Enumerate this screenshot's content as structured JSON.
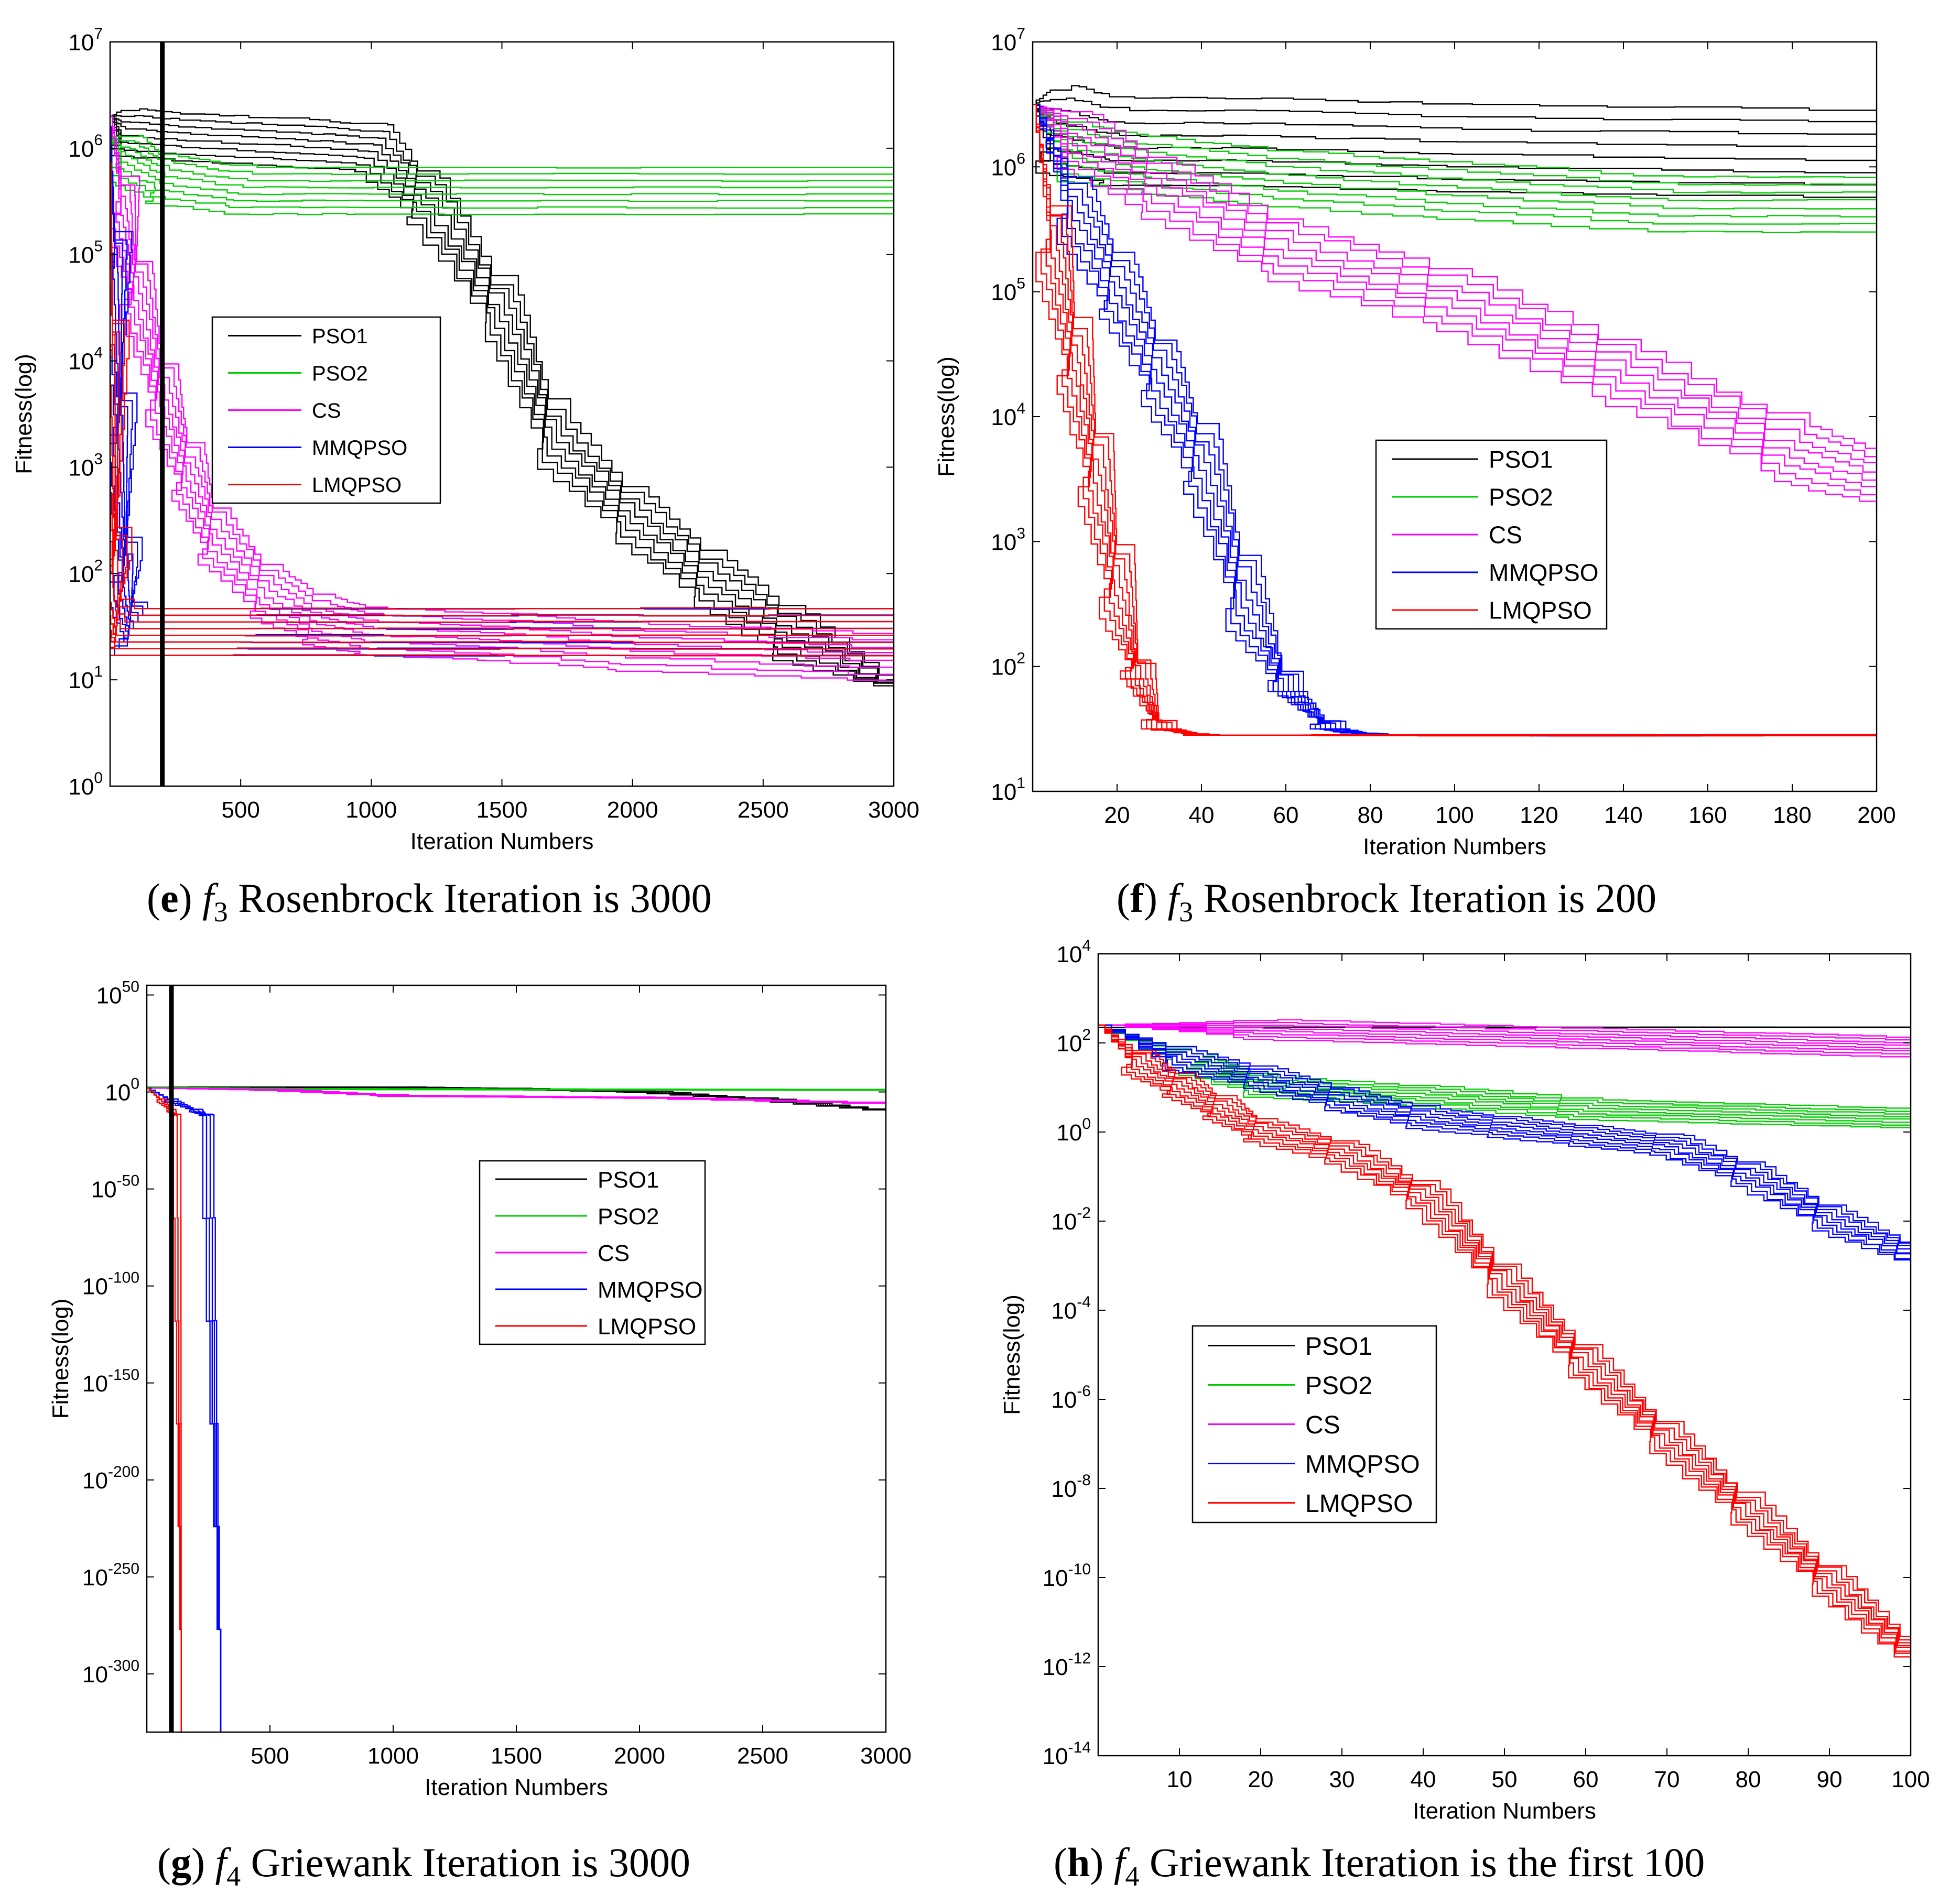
{
  "series_colors": {
    "PSO1": "#000000",
    "PSO2": "#00cc00",
    "CS": "#ff00ff",
    "MMQPSO": "#0000ff",
    "LMQPSO": "#ff0000"
  },
  "chart_data": [
    {
      "id": "e",
      "type": "line",
      "scale_y": "log",
      "caption": {
        "letter": "(e)",
        "fn": "f",
        "sub": "3",
        "text": "Rosenbrock Iteration is 3000"
      },
      "xlabel": "Iteration Numbers",
      "ylabel": "Fitness(log)",
      "xlim": [
        0,
        3000
      ],
      "xticks": [
        500,
        1000,
        1500,
        2000,
        2500,
        3000
      ],
      "ylim_exp": [
        0,
        7
      ],
      "yticks_exp": [
        0,
        1,
        2,
        3,
        4,
        5,
        6,
        7
      ],
      "legend": [
        "PSO1",
        "PSO2",
        "CS",
        "MMQPSO",
        "LMQPSO"
      ],
      "marker_x": 200,
      "series": [
        {
          "name": "PSO1",
          "runs": 8,
          "x": [
            0,
            50,
            300,
            700,
            1000,
            1200,
            1500,
            1700,
            2000,
            2300,
            2600,
            3000
          ],
          "y_exp": [
            6.3,
            6.15,
            6.1,
            6.05,
            6.0,
            5.5,
            4.4,
            3.2,
            2.5,
            1.9,
            1.4,
            0.9
          ]
        },
        {
          "name": "PSO2",
          "runs": 8,
          "x": [
            0,
            50,
            200,
            500,
            1000,
            3000
          ],
          "y_exp": [
            6.1,
            5.9,
            5.7,
            5.6,
            5.6,
            5.6
          ]
        },
        {
          "name": "CS",
          "runs": 8,
          "x": [
            0,
            50,
            100,
            200,
            300,
            400,
            600,
            800,
            1000,
            1500,
            2000,
            3000
          ],
          "y_exp": [
            6.3,
            5.4,
            4.6,
            3.6,
            2.9,
            2.3,
            1.8,
            1.55,
            1.45,
            1.4,
            1.3,
            1.2
          ]
        },
        {
          "name": "MMQPSO",
          "runs": 8,
          "x": [
            0,
            20,
            40,
            60,
            80,
            3000
          ],
          "y_exp": [
            6.2,
            4.8,
            3.2,
            1.9,
            1.45,
            1.45
          ]
        },
        {
          "name": "LMQPSO",
          "runs": 8,
          "x": [
            0,
            10,
            20,
            30,
            3000
          ],
          "y_exp": [
            6.2,
            3.8,
            1.9,
            1.45,
            1.45
          ]
        }
      ]
    },
    {
      "id": "f",
      "type": "line",
      "scale_y": "log",
      "caption": {
        "letter": "(f)",
        "fn": "f",
        "sub": "3",
        "text": "Rosenbrock Iteration is 200"
      },
      "xlabel": "Iteration Numbers",
      "ylabel": "Fitness(log)",
      "xlim": [
        0,
        200
      ],
      "xticks": [
        20,
        40,
        60,
        80,
        100,
        120,
        140,
        160,
        180,
        200
      ],
      "ylim_exp": [
        1,
        7
      ],
      "yticks_exp": [
        1,
        2,
        3,
        4,
        5,
        6,
        7
      ],
      "legend": [
        "PSO1",
        "PSO2",
        "CS",
        "MMQPSO",
        "LMQPSO"
      ],
      "series": [
        {
          "name": "PSO1",
          "runs": 8,
          "x": [
            0,
            5,
            20,
            50,
            100,
            200
          ],
          "y_exp": [
            6.5,
            6.3,
            6.2,
            6.2,
            6.15,
            6.1
          ]
        },
        {
          "name": "PSO2",
          "runs": 8,
          "x": [
            0,
            10,
            30,
            60,
            100,
            150,
            200
          ],
          "y_exp": [
            6.5,
            6.1,
            6.0,
            5.9,
            5.8,
            5.7,
            5.7
          ]
        },
        {
          "name": "CS",
          "runs": 8,
          "x": [
            0,
            10,
            30,
            60,
            100,
            140,
            180,
            200
          ],
          "y_exp": [
            6.5,
            6.2,
            5.8,
            5.3,
            4.9,
            4.3,
            3.7,
            3.5
          ]
        },
        {
          "name": "MMQPSO",
          "runs": 8,
          "x": [
            0,
            10,
            20,
            30,
            40,
            50,
            60,
            70,
            80,
            200
          ],
          "y_exp": [
            6.5,
            5.6,
            5.0,
            4.3,
            3.6,
            2.5,
            1.8,
            1.5,
            1.45,
            1.45
          ]
        },
        {
          "name": "LMQPSO",
          "runs": 8,
          "x": [
            0,
            5,
            10,
            15,
            20,
            25,
            30,
            40,
            200
          ],
          "y_exp": [
            6.5,
            5.3,
            4.4,
            3.5,
            2.6,
            1.9,
            1.5,
            1.45,
            1.45
          ]
        }
      ]
    },
    {
      "id": "g",
      "type": "line",
      "scale_y": "log",
      "caption": {
        "letter": "(g)",
        "fn": "f",
        "sub": "4",
        "text": "Griewank Iteration is 3000"
      },
      "xlabel": "Iteration Numbers",
      "ylabel": "Fitness(log)",
      "xlim": [
        0,
        3000
      ],
      "xticks": [
        500,
        1000,
        1500,
        2000,
        2500,
        3000
      ],
      "ylim_exp": [
        -330,
        55
      ],
      "yticks_exp": [
        50,
        0,
        -50,
        -100,
        -150,
        -200,
        -250,
        -300
      ],
      "legend": [
        "PSO1",
        "PSO2",
        "CS",
        "MMQPSO",
        "LMQPSO"
      ],
      "marker_x": 100,
      "series": [
        {
          "name": "PSO1",
          "runs": 8,
          "x": [
            0,
            500,
            1000,
            1500,
            2000,
            2500,
            3000
          ],
          "y_exp": [
            2.5,
            2.5,
            2.3,
            1.5,
            0,
            -4,
            -10
          ]
        },
        {
          "name": "PSO2",
          "runs": 8,
          "x": [
            0,
            500,
            3000
          ],
          "y_exp": [
            2.5,
            1.5,
            1.0
          ]
        },
        {
          "name": "CS",
          "runs": 8,
          "x": [
            0,
            500,
            1000,
            2000,
            3000
          ],
          "y_exp": [
            2.0,
            1.0,
            -2,
            -3,
            -6
          ]
        },
        {
          "name": "MMQPSO",
          "runs": 4,
          "x": [
            0,
            100,
            200,
            240,
            300
          ],
          "y_exp": [
            2,
            -5,
            -10,
            -12,
            -330
          ]
        },
        {
          "name": "LMQPSO",
          "runs": 3,
          "x": [
            0,
            60,
            100,
            120,
            140
          ],
          "y_exp": [
            2,
            -5,
            -10,
            -12,
            -330
          ]
        }
      ]
    },
    {
      "id": "h",
      "type": "line",
      "scale_y": "log",
      "caption": {
        "letter": "(h)",
        "fn": "f",
        "sub": "4",
        "text": "Griewank Iteration is the first 100"
      },
      "xlabel": "Iteration Numbers",
      "ylabel": "Fitness(log)",
      "xlim": [
        0,
        100
      ],
      "xticks": [
        10,
        20,
        30,
        40,
        50,
        60,
        70,
        80,
        90,
        100
      ],
      "ylim_exp": [
        -14,
        4
      ],
      "yticks_exp": [
        4,
        2,
        0,
        -2,
        -4,
        -6,
        -8,
        -10,
        -12,
        -14
      ],
      "legend": [
        "PSO1",
        "PSO2",
        "CS",
        "MMQPSO",
        "LMQPSO"
      ],
      "series": [
        {
          "name": "PSO1",
          "runs": 5,
          "x": [
            0,
            100
          ],
          "y_exp": [
            2.35,
            2.35
          ]
        },
        {
          "name": "PSO2",
          "runs": 8,
          "x": [
            0,
            10,
            20,
            40,
            60,
            80,
            100
          ],
          "y_exp": [
            2.4,
            1.6,
            1.0,
            0.8,
            0.5,
            0.4,
            0.3
          ]
        },
        {
          "name": "CS",
          "runs": 8,
          "x": [
            0,
            20,
            40,
            60,
            80,
            100
          ],
          "y_exp": [
            2.4,
            2.3,
            2.2,
            2.1,
            2.0,
            1.9
          ]
        },
        {
          "name": "MMQPSO",
          "runs": 8,
          "x": [
            0,
            10,
            20,
            30,
            40,
            50,
            60,
            70,
            80,
            90,
            100
          ],
          "y_exp": [
            2.4,
            1.6,
            1.2,
            0.7,
            0.3,
            0.1,
            -0.1,
            -0.3,
            -1.0,
            -2.0,
            -2.8
          ]
        },
        {
          "name": "LMQPSO",
          "runs": 8,
          "x": [
            0,
            5,
            10,
            15,
            20,
            30,
            40,
            50,
            60,
            70,
            80,
            90,
            100
          ],
          "y_exp": [
            2.4,
            1.5,
            1.0,
            0.5,
            0,
            -0.5,
            -1.5,
            -3.5,
            -5.3,
            -7.0,
            -8.6,
            -10.2,
            -11.8
          ]
        }
      ]
    }
  ]
}
